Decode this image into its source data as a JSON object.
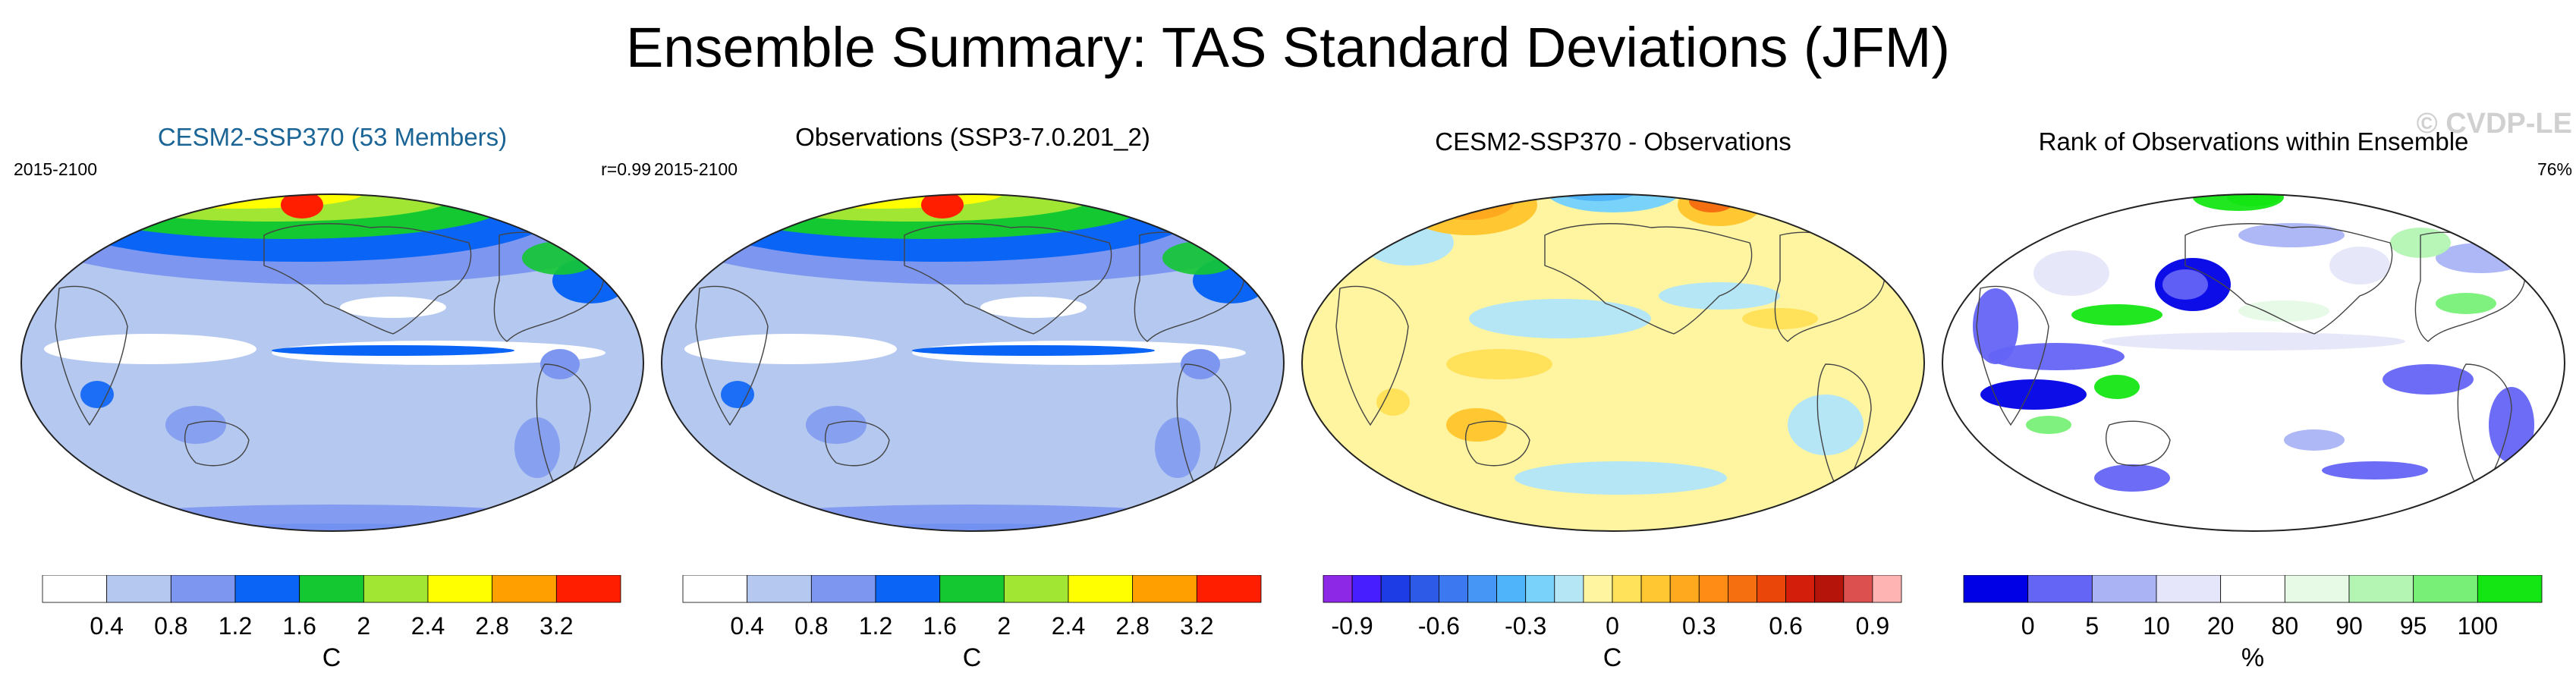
{
  "title": "Ensemble Summary: TAS Standard Deviations (JFM)",
  "watermark": "© CVDP-LE",
  "colors": {
    "title_accent": "#1a6496",
    "ocean_base": "#b4c8f0"
  },
  "chart_data": [
    {
      "type": "heatmap",
      "title": "CESM2-SSP370 (53 Members)",
      "left_label": "2015-2100",
      "right_label": "r=0.99",
      "colorbar": {
        "unit": "C",
        "ticks": [
          "0.4",
          "0.8",
          "1.2",
          "1.6",
          "2",
          "2.4",
          "2.8",
          "3.2"
        ],
        "colors": [
          "#ffffff",
          "#b4c8f0",
          "#7d96f0",
          "#0a64f5",
          "#14c832",
          "#a0e632",
          "#ffff00",
          "#ffa000",
          "#ff1e00"
        ]
      }
    },
    {
      "type": "heatmap",
      "title": "Observations (SSP3-7.0.201_2)",
      "left_label": "2015-2100",
      "right_label": "",
      "colorbar": {
        "unit": "C",
        "ticks": [
          "0.4",
          "0.8",
          "1.2",
          "1.6",
          "2",
          "2.4",
          "2.8",
          "3.2"
        ],
        "colors": [
          "#ffffff",
          "#b4c8f0",
          "#7d96f0",
          "#0a64f5",
          "#14c832",
          "#a0e632",
          "#ffff00",
          "#ffa000",
          "#ff1e00"
        ]
      }
    },
    {
      "type": "heatmap",
      "title": "CESM2-SSP370 - Observations",
      "left_label": "",
      "right_label": "",
      "colorbar": {
        "unit": "C",
        "ticks": [
          "-0.9",
          "-0.6",
          "-0.3",
          "0",
          "0.3",
          "0.6",
          "0.9"
        ],
        "colors": [
          "#8c28e6",
          "#461eff",
          "#1e3ce6",
          "#2d5ae6",
          "#3c78f0",
          "#4696f5",
          "#50b4fa",
          "#78d2fa",
          "#b4e6f5",
          "#fff5a0",
          "#ffe15a",
          "#ffc832",
          "#ffaa1e",
          "#ff8c14",
          "#f56e0f",
          "#eb460a",
          "#d21e0a",
          "#b4140a",
          "#dc5050",
          "#ffb4b4"
        ]
      }
    },
    {
      "type": "heatmap",
      "title": "Rank of Observations within Ensemble",
      "left_label": "",
      "right_label": "76%",
      "colorbar": {
        "unit": "%",
        "ticks": [
          "0",
          "5",
          "10",
          "20",
          "80",
          "90",
          "95",
          "100"
        ],
        "colors": [
          "#0000e6",
          "#6464f5",
          "#aab4f5",
          "#e6e6fa",
          "#ffffff",
          "#e6fae6",
          "#b4f5b4",
          "#78f078",
          "#14e614"
        ]
      }
    }
  ]
}
